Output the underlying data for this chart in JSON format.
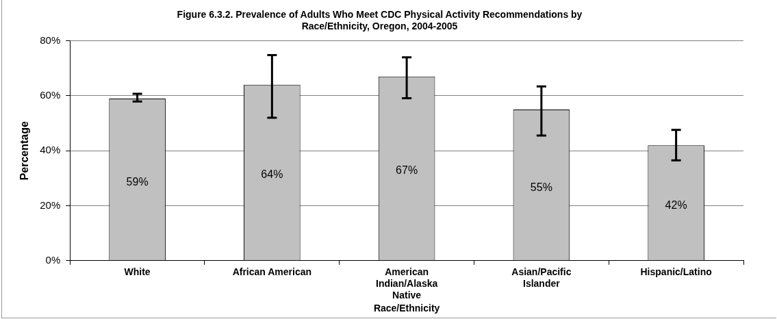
{
  "chart_data": {
    "type": "bar",
    "title": "Figure 6.3.2. Prevalence of Adults Who Meet CDC Physical Activity Recommendations by Race/Ethnicity, Oregon, 2004-2005",
    "xlabel": "Race/Ethnicity",
    "ylabel": "Percentage",
    "categories": [
      "White",
      "African American",
      "American Indian/Alaska Native",
      "Asian/Pacific Islander",
      "Hispanic/Latino"
    ],
    "values": [
      59,
      64,
      67,
      55,
      42
    ],
    "value_labels": [
      "59%",
      "64%",
      "67%",
      "55%",
      "42%"
    ],
    "errors": [
      [
        57.9,
        60.7
      ],
      [
        52,
        74.8
      ],
      [
        59.1,
        74
      ],
      [
        45.5,
        63.4
      ],
      [
        36.5,
        47.6
      ]
    ],
    "color": "#c0c0c0",
    "ylim": [
      0,
      80
    ],
    "yticks": [
      {
        "value": 0,
        "label": "0%"
      },
      {
        "value": 20,
        "label": "20%"
      },
      {
        "value": 40,
        "label": "40%"
      },
      {
        "value": 60,
        "label": "60%"
      },
      {
        "value": 80,
        "label": "80%"
      }
    ],
    "grid": "y",
    "legend": false
  }
}
